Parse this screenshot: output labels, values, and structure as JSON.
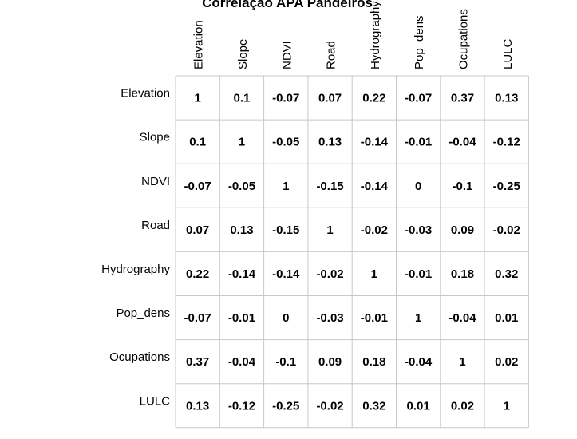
{
  "chart_data": {
    "type": "heatmap",
    "title": "Correlação APA Pandeiros",
    "variables": [
      "Elevation",
      "Slope",
      "NDVI",
      "Road",
      "Hydrography",
      "Pop_dens",
      "Ocupations",
      "LULC"
    ],
    "matrix": [
      [
        "1",
        "0.1",
        "-0.07",
        "0.07",
        "0.22",
        "-0.07",
        "0.37",
        "0.13"
      ],
      [
        "0.1",
        "1",
        "-0.05",
        "0.13",
        "-0.14",
        "-0.01",
        "-0.04",
        "-0.12"
      ],
      [
        "-0.07",
        "-0.05",
        "1",
        "-0.15",
        "-0.14",
        "0",
        "-0.1",
        "-0.25"
      ],
      [
        "0.07",
        "0.13",
        "-0.15",
        "1",
        "-0.02",
        "-0.03",
        "0.09",
        "-0.02"
      ],
      [
        "0.22",
        "-0.14",
        "-0.14",
        "-0.02",
        "1",
        "-0.01",
        "0.18",
        "0.32"
      ],
      [
        "-0.07",
        "-0.01",
        "0",
        "-0.03",
        "-0.01",
        "1",
        "-0.04",
        "0.01"
      ],
      [
        "0.37",
        "-0.04",
        "-0.1",
        "0.09",
        "0.18",
        "-0.04",
        "1",
        "0.02"
      ],
      [
        "0.13",
        "-0.12",
        "-0.25",
        "-0.02",
        "0.32",
        "0.01",
        "0.02",
        "1"
      ]
    ],
    "grid": true,
    "gridColor": "#c8c8c8",
    "textColor": "#000000"
  }
}
